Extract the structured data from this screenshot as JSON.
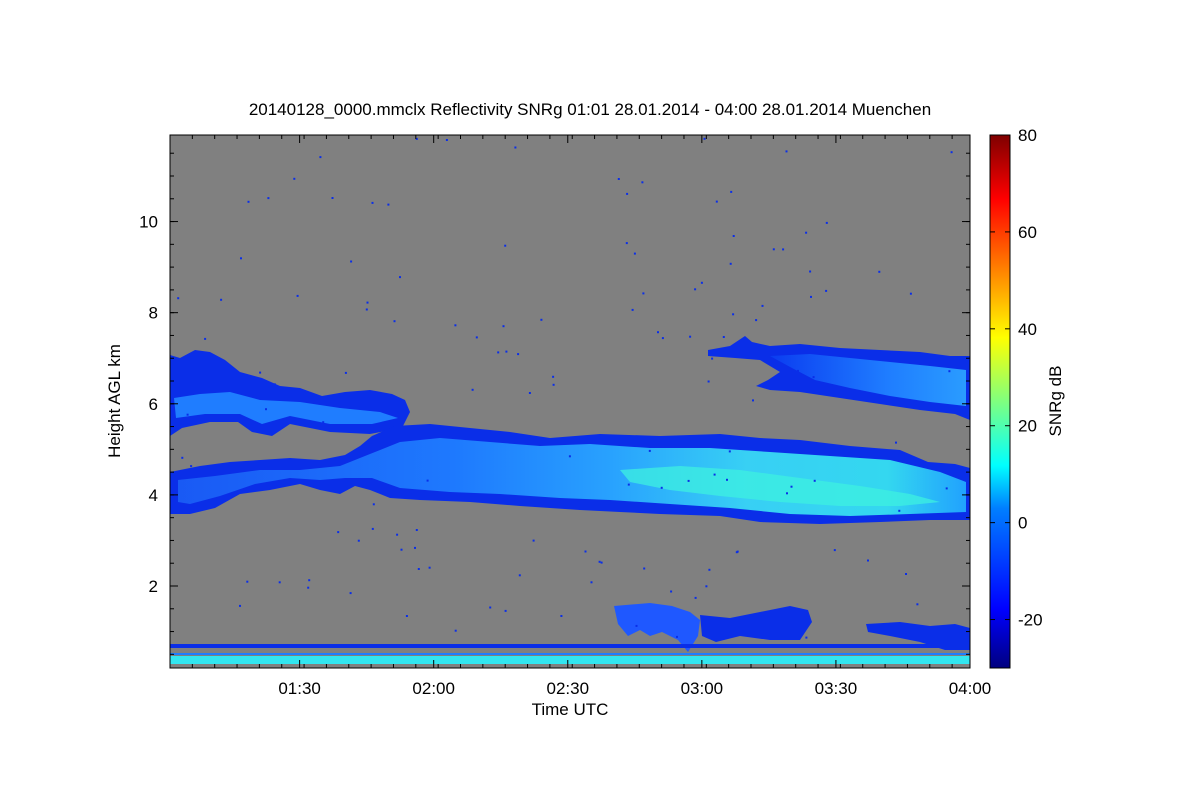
{
  "chart_data": {
    "type": "heatmap",
    "title": "20140128_0000.mmclx Reflectivity SNRg   01:01 28.01.2014 - 04:00 28.01.2014 Muenchen",
    "xlabel": "Time UTC",
    "ylabel": "Height AGL km",
    "colorbar_label": "SNRg dB",
    "xlim": [
      "01:01",
      "04:00"
    ],
    "ylim": [
      0.2,
      11.9
    ],
    "x_ticks": [
      "01:30",
      "02:00",
      "02:30",
      "03:00",
      "03:30",
      "04:00"
    ],
    "y_ticks": [
      "2",
      "4",
      "6",
      "8",
      "10"
    ],
    "colorbar_range": [
      -30,
      80
    ],
    "colorbar_ticks": [
      "-20",
      "0",
      "20",
      "40",
      "60",
      "80"
    ],
    "colors": {
      "no_signal": "#808080",
      "weak": "#0a2ee8",
      "medium": "#1f7dff",
      "strong": "#32e6f0",
      "colormap": [
        "#00007f",
        "#0000ff",
        "#007fff",
        "#00ffff",
        "#7fff7f",
        "#ffff00",
        "#ff7f00",
        "#ff0000",
        "#7f0000"
      ]
    },
    "features": [
      {
        "name": "upper cloud layer left",
        "time_start": "01:01",
        "time_end": "01:55",
        "height_bottom": 5.4,
        "height_top": 7.0,
        "snr_db": -8
      },
      {
        "name": "main cloud layer",
        "time_start": "01:01",
        "time_end": "04:00",
        "height_bottom": 3.4,
        "height_top": 5.6,
        "snr_db": 5
      },
      {
        "name": "upper cloud layer right",
        "time_start": "03:02",
        "time_end": "04:00",
        "height_bottom": 5.6,
        "height_top": 7.5,
        "snr_db": -5
      },
      {
        "name": "low clutter",
        "time_start": "02:40",
        "time_end": "04:00",
        "height_bottom": 0.4,
        "height_top": 1.5,
        "snr_db": -12
      },
      {
        "name": "near-surface band",
        "time_start": "01:01",
        "time_end": "04:00",
        "height_bottom": 0.2,
        "height_top": 0.5,
        "snr_db": 6
      }
    ]
  }
}
